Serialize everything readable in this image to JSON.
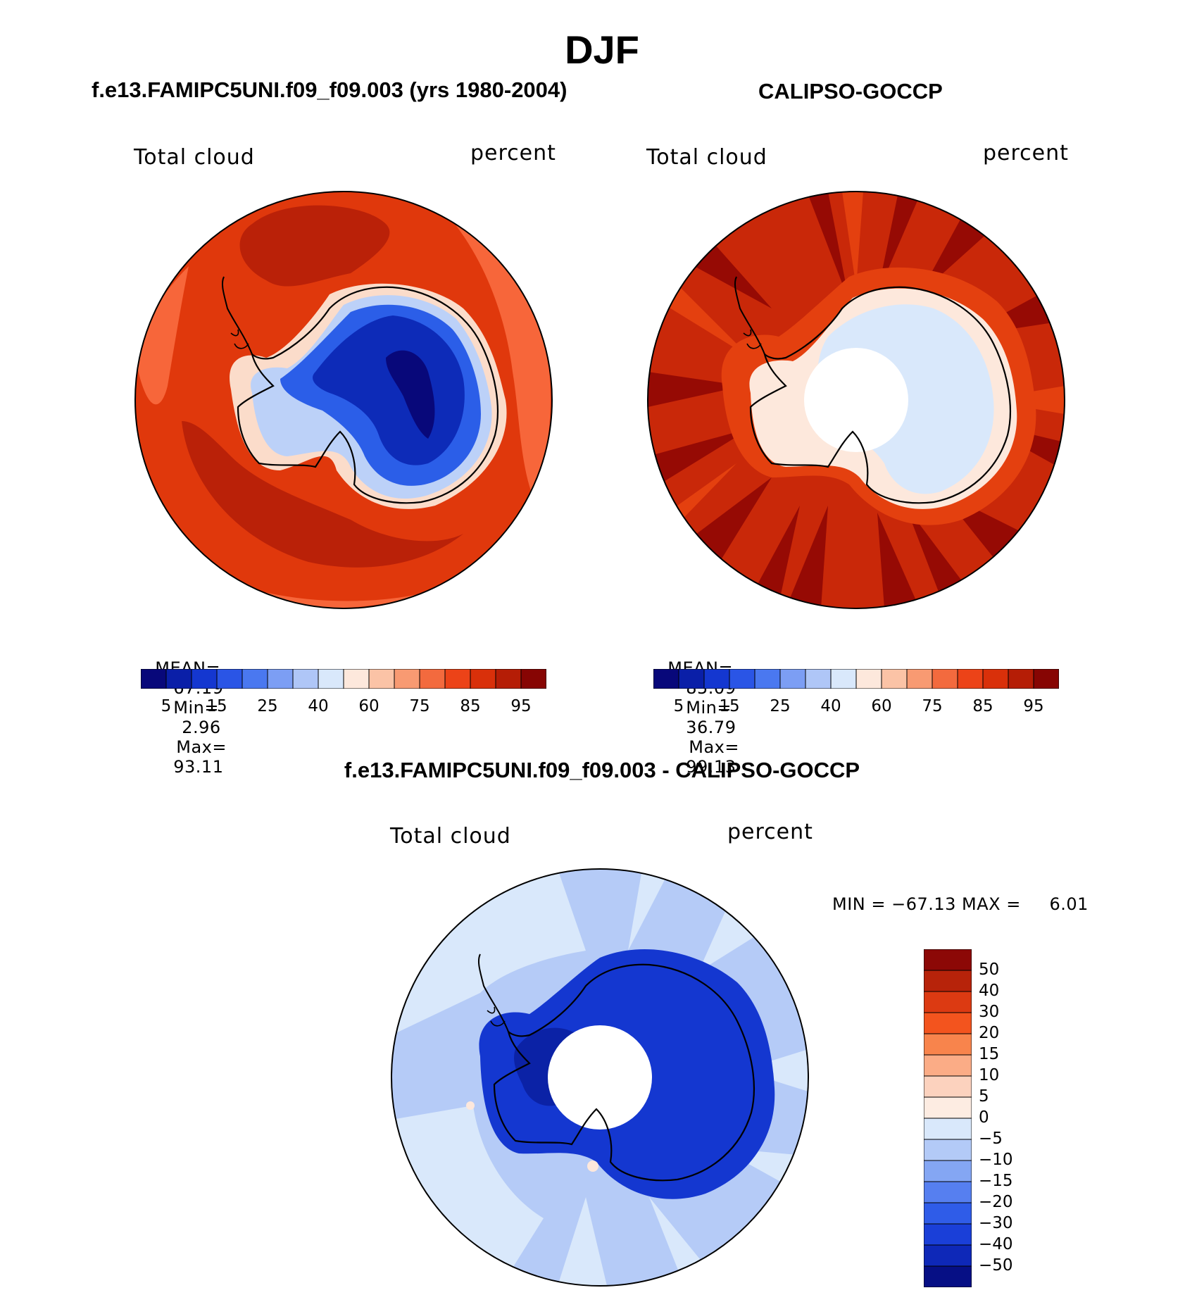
{
  "title": "DJF",
  "panels": [
    {
      "id": "model",
      "title": "f.e13.FAMIPC5UNI.f09_f09.003 (yrs 1980-2004)",
      "left_label": "Total cloud",
      "right_label": "percent",
      "stats": {
        "mean_label": "MEAN=",
        "mean": "67.19",
        "min_label": "Min=",
        "min": "2.96",
        "max_label": "Max=",
        "max": "93.11"
      }
    },
    {
      "id": "obs",
      "title": "CALIPSO-GOCCP",
      "left_label": "Total cloud",
      "right_label": "percent",
      "stats": {
        "mean_label": "MEAN=",
        "mean": "85.09",
        "min_label": "Min=",
        "min": "36.79",
        "max_label": "Max=",
        "max": "99.13"
      }
    },
    {
      "id": "diff",
      "title": "f.e13.FAMIPC5UNI.f09_f09.003 - CALIPSO-GOCCP",
      "left_label": "Total cloud",
      "right_label": "percent",
      "stats_text": "MIN = −67.13 MAX =     6.01"
    }
  ],
  "horizontal_colorbar": {
    "colors": [
      "#08087a",
      "#0a1fa8",
      "#1437d0",
      "#2a55e6",
      "#4a78f0",
      "#7c9ef4",
      "#afc6f7",
      "#d9e8fb",
      "#fde8dc",
      "#fbc3a6",
      "#f89a72",
      "#f36a3e",
      "#ec4318",
      "#d9300a",
      "#b51d06",
      "#870503"
    ],
    "tick_labels": [
      "5",
      "15",
      "25",
      "40",
      "60",
      "75",
      "85",
      "95"
    ]
  },
  "vertical_colorbar": {
    "colors_top_to_bottom": [
      "#8c0806",
      "#b7230a",
      "#dc3a12",
      "#f3541e",
      "#f8844c",
      "#fbac86",
      "#fcd2be",
      "#fdece2",
      "#d9e8fb",
      "#b3caf7",
      "#84a6f3",
      "#567ff0",
      "#2f5ce8",
      "#1a3fd8",
      "#0e28b8",
      "#060f85"
    ],
    "tick_labels": [
      "50",
      "40",
      "30",
      "20",
      "15",
      "10",
      "5",
      "0",
      "−5",
      "−10",
      "−15",
      "−20",
      "−30",
      "−40",
      "−50"
    ]
  },
  "map_colors": {
    "model_ocean": "#e0380c",
    "model_ocean_dark": "#ba2108",
    "model_ocean_light": "#f7663a",
    "model_coast": "#fbdcca",
    "model_ice_light": "#bcd1f8",
    "model_ice_mid": "#2b5ee8",
    "model_ice_dark": "#0d2bb8",
    "model_ice_core": "#08087a",
    "obs_ocean": "#c92809",
    "obs_ocean_dark": "#960a04",
    "obs_ocean_mid": "#e4400f",
    "obs_coast": "#fde8dc",
    "obs_ice": "#d9e8fb",
    "diff_ocean": "#b5cbf7",
    "diff_ocean_light": "#d9e8fb",
    "diff_ice": "#1437d0",
    "diff_ice_dark": "#0b22a6",
    "coastline": "#000000"
  }
}
